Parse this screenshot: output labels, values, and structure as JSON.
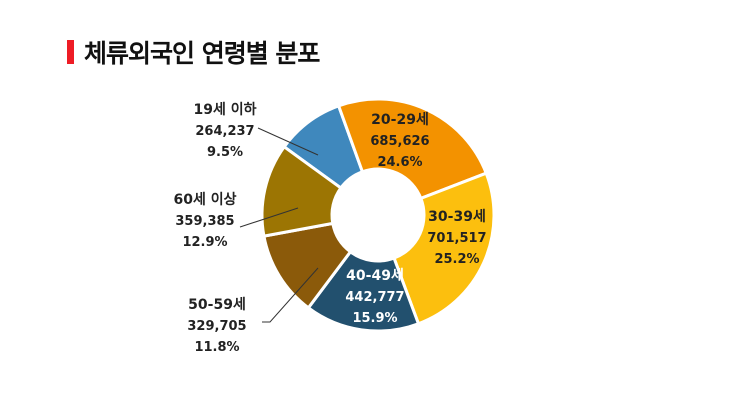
{
  "title": "체류외국인 연령별 분포",
  "colors": {
    "title_accent": "#ee1c25"
  },
  "chart_data": {
    "type": "pie",
    "donut": true,
    "title": "체류외국인 연령별 분포",
    "categories": [
      "19세 이하",
      "20-29세",
      "30-39세",
      "40-49세",
      "50-59세",
      "60세 이상"
    ],
    "values": [
      264237,
      685626,
      701517,
      442777,
      329705,
      359385
    ],
    "percentages": [
      9.5,
      24.6,
      25.2,
      15.9,
      11.8,
      12.9
    ],
    "value_labels": [
      "264,237",
      "685,626",
      "701,517",
      "442,777",
      "329,705",
      "359,385"
    ],
    "percent_labels": [
      "9.5%",
      "24.6%",
      "25.2%",
      "15.9%",
      "11.8%",
      "12.9%"
    ],
    "colors": [
      "#3f88bd",
      "#f39200",
      "#fcbf0e",
      "#22506e",
      "#8b5a0a",
      "#9c7503"
    ],
    "legend": "none",
    "data_labels": true
  },
  "labels": {
    "s0": {
      "name": "19세 이하",
      "value": "264,237",
      "pct": "9.5%"
    },
    "s1": {
      "name": "20-29세",
      "value": "685,626",
      "pct": "24.6%"
    },
    "s2": {
      "name": "30-39세",
      "value": "701,517",
      "pct": "25.2%"
    },
    "s3": {
      "name": "40-49세",
      "value": "442,777",
      "pct": "15.9%"
    },
    "s4": {
      "name": "50-59세",
      "value": "329,705",
      "pct": "11.8%"
    },
    "s5": {
      "name": "60세 이상",
      "value": "359,385",
      "pct": "12.9%"
    }
  }
}
